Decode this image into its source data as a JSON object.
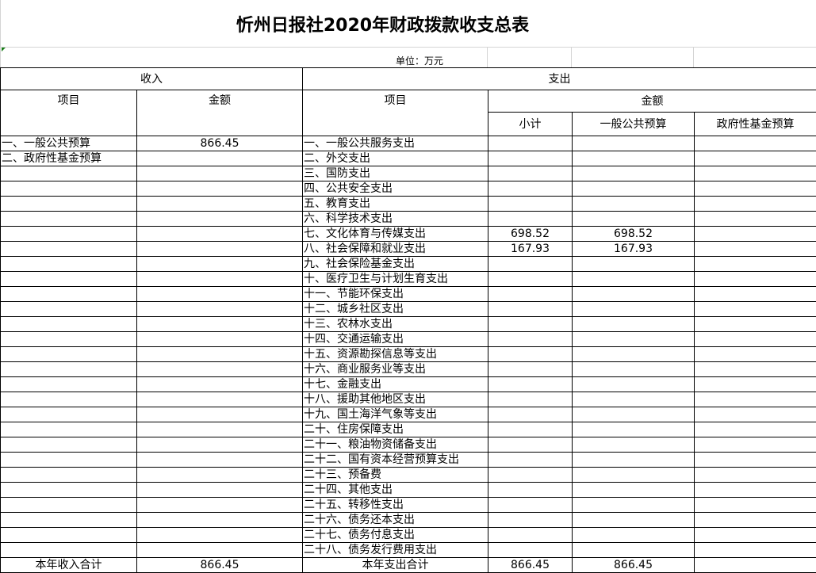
{
  "title": "忻州日报社2020年财政拨款收支总表",
  "unit": "单位：万元",
  "headers": {
    "income": "收入",
    "expense": "支出",
    "item": "项目",
    "amount": "金额",
    "exp_item": "项目",
    "exp_amount": "金额",
    "subtotal": "小计",
    "general": "一般公共预算",
    "fund": "政府性基金预算"
  },
  "income_rows": [
    {
      "item": "一、一般公共预算",
      "amount": "866.45"
    },
    {
      "item": "二、政府性基金预算",
      "amount": ""
    }
  ],
  "expense_rows": [
    {
      "item": "一、一般公共服务支出",
      "subtotal": "",
      "general": "",
      "fund": ""
    },
    {
      "item": "二、外交支出",
      "subtotal": "",
      "general": "",
      "fund": ""
    },
    {
      "item": "三、国防支出",
      "subtotal": "",
      "general": "",
      "fund": ""
    },
    {
      "item": "四、公共安全支出",
      "subtotal": "",
      "general": "",
      "fund": ""
    },
    {
      "item": "五、教育支出",
      "subtotal": "",
      "general": "",
      "fund": ""
    },
    {
      "item": "六、科学技术支出",
      "subtotal": "",
      "general": "",
      "fund": ""
    },
    {
      "item": "七、文化体育与传媒支出",
      "subtotal": "698.52",
      "general": "698.52",
      "fund": ""
    },
    {
      "item": "八、社会保障和就业支出",
      "subtotal": "167.93",
      "general": "167.93",
      "fund": ""
    },
    {
      "item": "九、社会保险基金支出",
      "subtotal": "",
      "general": "",
      "fund": ""
    },
    {
      "item": "十、医疗卫生与计划生育支出",
      "subtotal": "",
      "general": "",
      "fund": ""
    },
    {
      "item": "十一、节能环保支出",
      "subtotal": "",
      "general": "",
      "fund": ""
    },
    {
      "item": "十二、城乡社区支出",
      "subtotal": "",
      "general": "",
      "fund": ""
    },
    {
      "item": "十三、农林水支出",
      "subtotal": "",
      "general": "",
      "fund": ""
    },
    {
      "item": "十四、交通运输支出",
      "subtotal": "",
      "general": "",
      "fund": ""
    },
    {
      "item": "十五、资源勘探信息等支出",
      "subtotal": "",
      "general": "",
      "fund": ""
    },
    {
      "item": "十六、商业服务业等支出",
      "subtotal": "",
      "general": "",
      "fund": ""
    },
    {
      "item": "十七、金融支出",
      "subtotal": "",
      "general": "",
      "fund": ""
    },
    {
      "item": "十八、援助其他地区支出",
      "subtotal": "",
      "general": "",
      "fund": ""
    },
    {
      "item": "十九、国土海洋气象等支出",
      "subtotal": "",
      "general": "",
      "fund": ""
    },
    {
      "item": "二十、住房保障支出",
      "subtotal": "",
      "general": "",
      "fund": ""
    },
    {
      "item": "二十一、粮油物资储备支出",
      "subtotal": "",
      "general": "",
      "fund": ""
    },
    {
      "item": "二十二、国有资本经营预算支出",
      "subtotal": "",
      "general": "",
      "fund": ""
    },
    {
      "item": "二十三、预备费",
      "subtotal": "",
      "general": "",
      "fund": ""
    },
    {
      "item": "二十四、其他支出",
      "subtotal": "",
      "general": "",
      "fund": ""
    },
    {
      "item": "二十五、转移性支出",
      "subtotal": "",
      "general": "",
      "fund": ""
    },
    {
      "item": "二十六、债务还本支出",
      "subtotal": "",
      "general": "",
      "fund": ""
    },
    {
      "item": "二十七、债务付息支出",
      "subtotal": "",
      "general": "",
      "fund": ""
    },
    {
      "item": "二十八、债务发行费用支出",
      "subtotal": "",
      "general": "",
      "fund": ""
    }
  ],
  "totals": {
    "income_label": "本年收入合计",
    "income_amount": "866.45",
    "expense_label": "本年支出合计",
    "expense_subtotal": "866.45",
    "expense_general": "866.45",
    "expense_fund": ""
  }
}
